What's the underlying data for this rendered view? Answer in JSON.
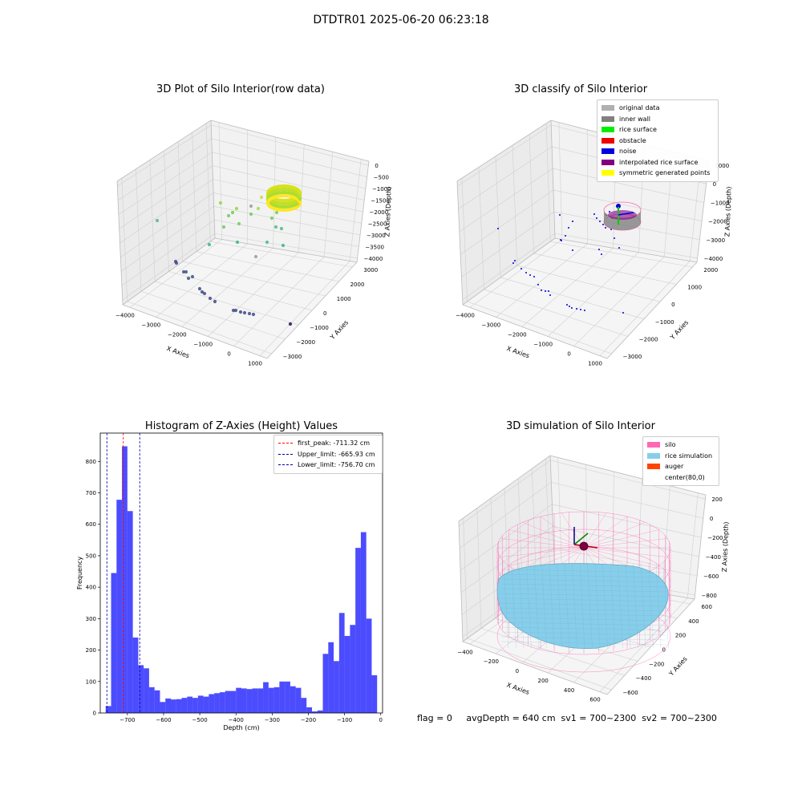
{
  "figure_title": "DTDTR01 2025-06-20 06:23:18",
  "panels": {
    "raw": {
      "title": "3D Plot of Silo Interior(row data)",
      "xlabel": "X Axies",
      "ylabel": "Y Axies",
      "zlabel": "Z Axies (Depth)",
      "xticks": [
        "−4000",
        "−3000",
        "−2000",
        "−1000",
        "0",
        "1000"
      ],
      "yticks": [
        "−3000",
        "−2000",
        "−1000",
        "0",
        "1000",
        "2000",
        "3000"
      ],
      "zticks": [
        "0",
        "−500",
        "−1000",
        "−1500",
        "−2000",
        "−2500",
        "−3000",
        "−3500",
        "−4000"
      ]
    },
    "classify": {
      "title": "3D classify of Silo Interior",
      "xlabel": "X Axies",
      "ylabel": "Y Axies",
      "zlabel": "Z Axies (Depth)",
      "xticks": [
        "−4000",
        "−3000",
        "−2000",
        "−1000",
        "0",
        "1000"
      ],
      "yticks": [
        "−3000",
        "−2000",
        "−1000",
        "0",
        "1000",
        "2000"
      ],
      "zticks": [
        "1000",
        "0",
        "−1000",
        "−2000",
        "−3000",
        "−4000"
      ],
      "legend": [
        {
          "label": "original data",
          "color": "#b0b0b0"
        },
        {
          "label": "inner wall",
          "color": "#808080"
        },
        {
          "label": "rice surface",
          "color": "#00ee00"
        },
        {
          "label": "obstacle",
          "color": "#ee0000"
        },
        {
          "label": "noise",
          "color": "#0000dd"
        },
        {
          "label": "interpolated rice surface",
          "color": "#800080"
        },
        {
          "label": "symmetric generated points",
          "color": "#ffff00"
        }
      ]
    },
    "hist": {
      "title": "Histogram of Z-Axies (Height) Values",
      "legend": [
        {
          "label": "first_peak: -711.32 cm",
          "color": "#ff0000"
        },
        {
          "label": "Upper_limit: -665.93 cm",
          "color": "#0000aa"
        },
        {
          "label": "Lower_limit: -756.70 cm",
          "color": "#0000aa"
        }
      ]
    },
    "sim": {
      "title": "3D simulation of Silo Interior",
      "xlabel": "X Axies",
      "ylabel": "Y Axies",
      "zlabel": "Z Axies (Depth)",
      "xticks": [
        "−400",
        "−200",
        "0",
        "200",
        "400",
        "600"
      ],
      "yticks": [
        "−600",
        "−400",
        "−200",
        "0",
        "200",
        "400",
        "600"
      ],
      "zticks": [
        "200",
        "0",
        "−200",
        "−400",
        "−600",
        "−800"
      ],
      "legend": [
        {
          "label": "silo",
          "color": "#ff69b4"
        },
        {
          "label": "rice simulation",
          "color": "#87ceeb"
        },
        {
          "label": "auger",
          "color": "#ff4500"
        },
        {
          "label": "center(80,0)",
          "color": ""
        }
      ]
    }
  },
  "footer": "flag = 0     avgDepth = 640 cm  sv1 = 700~2300  sv2 = 700~2300",
  "chart_data": [
    {
      "type": "scatter",
      "title": "3D Plot of Silo Interior(row data)",
      "xlabel": "X Axies",
      "ylabel": "Y Axies",
      "zlabel": "Z Axies (Depth)",
      "xlim": [
        -4000,
        1000
      ],
      "ylim": [
        -3000,
        3000
      ],
      "zlim": [
        -4000,
        0
      ],
      "colormap": "viridis"
    },
    {
      "type": "scatter",
      "title": "3D classify of Silo Interior",
      "xlabel": "X Axies",
      "ylabel": "Y Axies",
      "zlabel": "Z Axies (Depth)",
      "xlim": [
        -4000,
        1000
      ],
      "ylim": [
        -3000,
        2000
      ],
      "zlim": [
        -4000,
        1000
      ]
    },
    {
      "type": "bar",
      "title": "Histogram of Z-Axies (Height) Values",
      "xlabel": "Depth (cm)",
      "ylabel": "Frequency",
      "xlim": [
        -775,
        5
      ],
      "ylim": [
        0,
        890
      ],
      "xticks": [
        -700,
        -600,
        -500,
        -400,
        -300,
        -200,
        -100,
        0
      ],
      "yticks": [
        0,
        100,
        200,
        300,
        400,
        500,
        600,
        700,
        800
      ],
      "bin_start": -760,
      "bin_width": 15,
      "values": [
        22,
        445,
        678,
        848,
        642,
        240,
        152,
        142,
        82,
        72,
        35,
        46,
        43,
        44,
        48,
        52,
        48,
        55,
        52,
        60,
        63,
        66,
        70,
        70,
        80,
        78,
        76,
        78,
        78,
        98,
        80,
        82,
        100,
        100,
        85,
        80,
        48,
        18,
        5,
        8,
        188,
        225,
        165,
        318,
        245,
        280,
        525,
        575,
        300,
        120
      ],
      "bar_color": "#0000ff",
      "vlines": [
        {
          "label": "first_peak: -711.32 cm",
          "x": -711.32,
          "color": "#ff0000"
        },
        {
          "label": "Upper_limit: -665.93 cm",
          "x": -665.93,
          "color": "#0000aa"
        },
        {
          "label": "Lower_limit: -756.70 cm",
          "x": -756.7,
          "color": "#0000aa"
        }
      ],
      "legend_position": "top-right"
    },
    {
      "type": "surface",
      "title": "3D simulation of Silo Interior",
      "xlabel": "X Axies",
      "ylabel": "Y Axies",
      "zlabel": "Z Axies (Depth)",
      "xlim": [
        -500,
        700
      ],
      "ylim": [
        -600,
        600
      ],
      "zlim": [
        -900,
        300
      ]
    }
  ]
}
